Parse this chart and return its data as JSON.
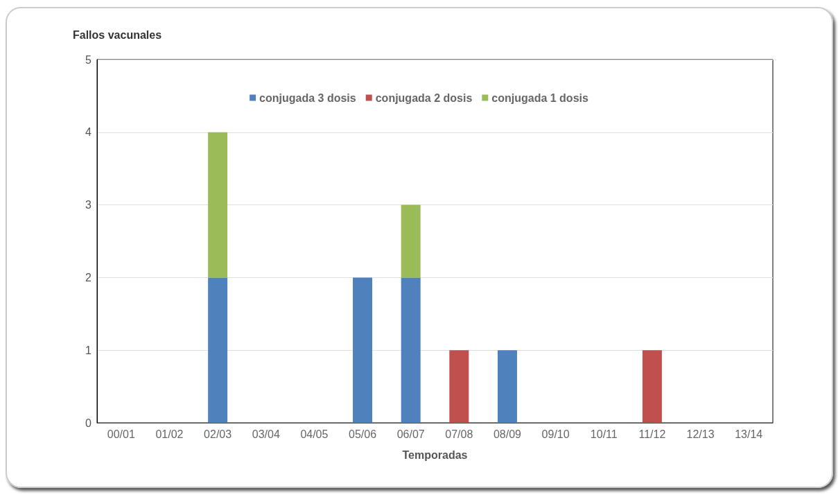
{
  "chart_data": {
    "type": "bar",
    "stacked": true,
    "ylabel": "Fallos vacunales",
    "xlabel": "Temporadas",
    "categories": [
      "00/01",
      "01/02",
      "02/03",
      "03/04",
      "04/05",
      "05/06",
      "06/07",
      "07/08",
      "08/09",
      "09/10",
      "10/11",
      "11/12",
      "12/13",
      "13/14"
    ],
    "series": [
      {
        "name": "conjugada 3 dosis",
        "color": "#4f81bd",
        "values": [
          0,
          0,
          2,
          0,
          0,
          2,
          2,
          0,
          1,
          0,
          0,
          0,
          0,
          0
        ]
      },
      {
        "name": "conjugada 2 dosis",
        "color": "#c0504d",
        "values": [
          0,
          0,
          0,
          0,
          0,
          0,
          0,
          1,
          0,
          0,
          0,
          1,
          0,
          0
        ]
      },
      {
        "name": "conjugada 1 dosis",
        "color": "#9bbb59",
        "values": [
          0,
          0,
          2,
          0,
          0,
          0,
          1,
          0,
          0,
          0,
          0,
          0,
          0,
          0
        ]
      }
    ],
    "ylim": [
      0,
      5
    ],
    "yticks": [
      0,
      1,
      2,
      3,
      4,
      5
    ],
    "grid": "y",
    "legend": "top"
  }
}
